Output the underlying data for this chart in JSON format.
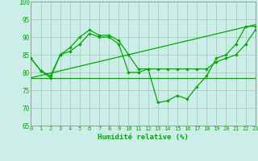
{
  "xlabel": "Humidité relative (%)",
  "x_ticks": [
    0,
    1,
    2,
    3,
    4,
    5,
    6,
    7,
    8,
    9,
    10,
    11,
    12,
    13,
    14,
    15,
    16,
    17,
    18,
    19,
    20,
    21,
    22,
    23
  ],
  "ylim": [
    65,
    100
  ],
  "xlim": [
    0,
    23
  ],
  "y_ticks": [
    65,
    70,
    75,
    80,
    85,
    90,
    95,
    100
  ],
  "background_color": "#cceee8",
  "grid_color": "#aaccbb",
  "line_color": "#00aa00",
  "line1_x": [
    0,
    1,
    2,
    3,
    4,
    5,
    6,
    7,
    8,
    9,
    10,
    11,
    12,
    13,
    14,
    15,
    16,
    17,
    18,
    19,
    20,
    21,
    22,
    23
  ],
  "line1_y": [
    84,
    80.5,
    79,
    85,
    87,
    90,
    92,
    90.5,
    90.5,
    89,
    85,
    81,
    81,
    71.5,
    72,
    73.5,
    72.5,
    76,
    79,
    84,
    85,
    88,
    93,
    93
  ],
  "line2_x": [
    0,
    1,
    2,
    3,
    4,
    5,
    6,
    7,
    8,
    9,
    10,
    11,
    12,
    13,
    14,
    15,
    16,
    17,
    18,
    19,
    20,
    21,
    22,
    23
  ],
  "line2_y": [
    84,
    80.5,
    78.5,
    85,
    86,
    88,
    91,
    90,
    90,
    88,
    80,
    80,
    81,
    81,
    81,
    81,
    81,
    81,
    81,
    83,
    84,
    85,
    88,
    92
  ],
  "line3_x": [
    0,
    23
  ],
  "line3_y": [
    78.5,
    93.5
  ],
  "line4_x": [
    0,
    23
  ],
  "line4_y": [
    78.5,
    78.5
  ]
}
